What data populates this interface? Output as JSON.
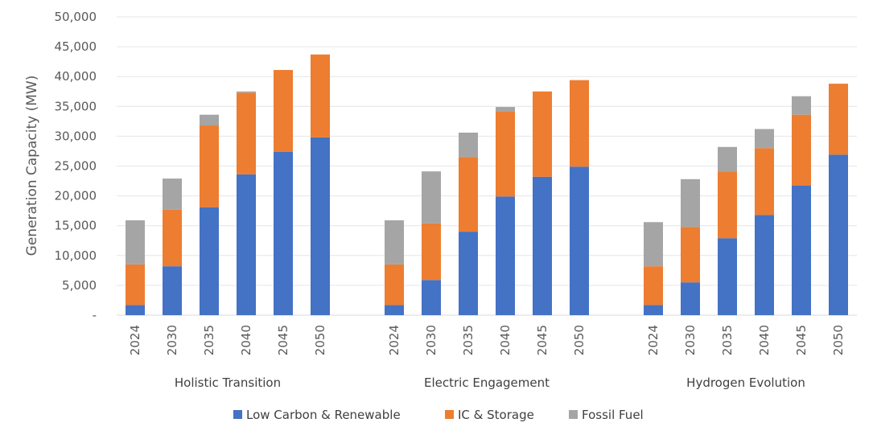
{
  "chart_data": {
    "type": "bar",
    "stacked": true,
    "ylabel": "Generation Capacity (MW)",
    "ylim": [
      0,
      50000
    ],
    "yticks": [
      "-",
      "5,000",
      "10,000",
      "15,000",
      "20,000",
      "25,000",
      "30,000",
      "35,000",
      "40,000",
      "45,000",
      "50,000"
    ],
    "grid": true,
    "legend_position": "bottom",
    "categories": [
      "2024",
      "2030",
      "2035",
      "2040",
      "2045",
      "2050"
    ],
    "series": [
      {
        "name": "Low Carbon & Renewable",
        "color": "#4472C4"
      },
      {
        "name": "IC & Storage",
        "color": "#ED7D31"
      },
      {
        "name": "Fossil Fuel",
        "color": "#A5A5A5"
      }
    ],
    "groups": [
      {
        "name": "Holistic Transition",
        "values": [
          [
            1700,
            6800,
            7400
          ],
          [
            8200,
            9500,
            5200
          ],
          [
            18100,
            13700,
            1800
          ],
          [
            23600,
            13700,
            200
          ],
          [
            27400,
            13700,
            0
          ],
          [
            29800,
            13900,
            0
          ]
        ]
      },
      {
        "name": "Electric Engagement",
        "values": [
          [
            1700,
            6800,
            7400
          ],
          [
            5900,
            9500,
            8700
          ],
          [
            14000,
            12500,
            4100
          ],
          [
            19900,
            14200,
            800
          ],
          [
            23200,
            14300,
            0
          ],
          [
            24900,
            14500,
            0
          ]
        ]
      },
      {
        "name": "Hydrogen Evolution",
        "values": [
          [
            1700,
            6500,
            7400
          ],
          [
            5500,
            9300,
            8000
          ],
          [
            12900,
            11200,
            4100
          ],
          [
            16800,
            11200,
            3200
          ],
          [
            21700,
            11900,
            3100
          ],
          [
            26900,
            11900,
            0
          ]
        ]
      }
    ]
  }
}
